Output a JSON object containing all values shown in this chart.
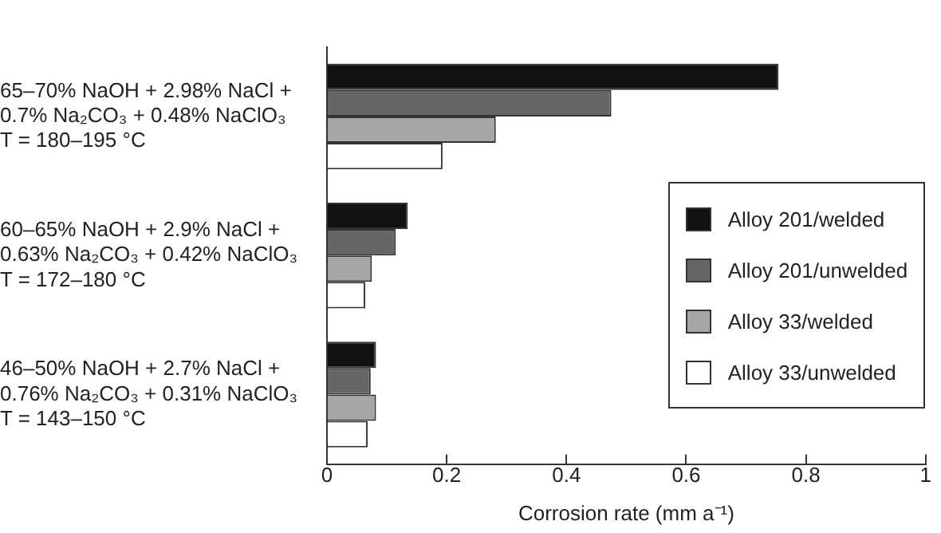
{
  "chart_data": {
    "type": "bar",
    "orientation": "horizontal",
    "xlabel": "Corrosion rate (mm a⁻¹)",
    "categories": [
      "65–70% NaOH + 2.98% NaCl +\n0.7% Na₂CO₃ + 0.48% NaClO₃\nT = 180–195 °C",
      "60–65% NaOH + 2.9% NaCl +\n0.63% Na₂CO₃ + 0.42% NaClO₃\nT = 172–180 °C",
      "46–50% NaOH + 2.7% NaCl +\n0.76% Na₂CO₃ + 0.31% NaClO₃\nT = 143–150 °C"
    ],
    "series": [
      {
        "name": "Alloy 201/welded",
        "color": "#111111",
        "values": [
          0.754,
          0.135,
          0.082
        ]
      },
      {
        "name": "Alloy 201/unwelded",
        "color": "#666666",
        "values": [
          0.475,
          0.115,
          0.073
        ]
      },
      {
        "name": "Alloy 33/welded",
        "color": "#a6a6a6",
        "values": [
          0.282,
          0.075,
          0.082
        ]
      },
      {
        "name": "Alloy 33/unwelded",
        "color": "#ffffff",
        "values": [
          0.193,
          0.064,
          0.068
        ]
      }
    ],
    "xlim": [
      0,
      1
    ],
    "xticks": [
      0,
      0.2,
      0.4,
      0.6,
      0.8,
      1
    ],
    "grid": false,
    "legend": "right"
  }
}
